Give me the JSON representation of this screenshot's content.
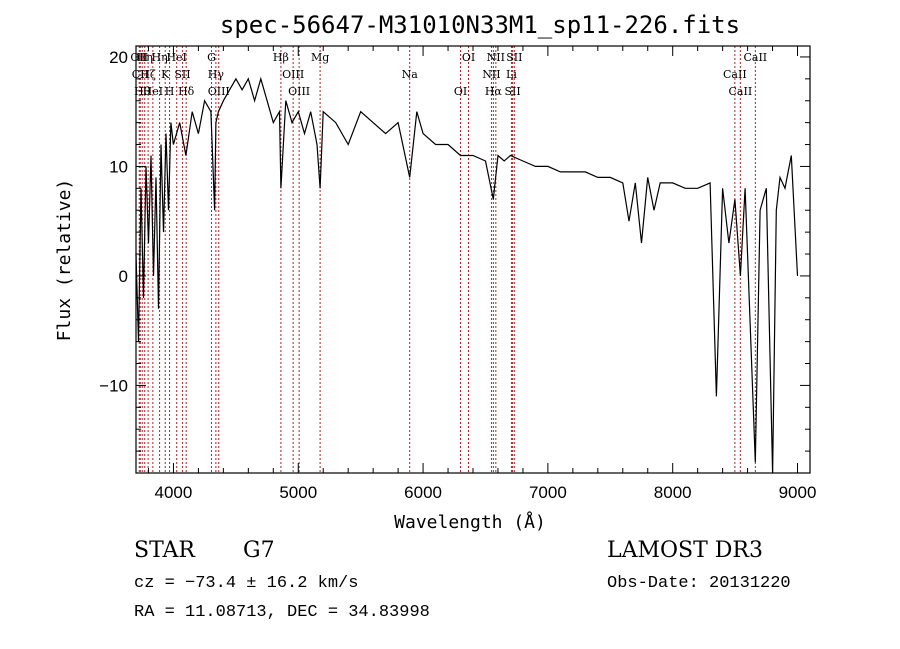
{
  "chart_data": {
    "type": "line",
    "title": "spec-56647-M31010N33M1_sp11-226.fits",
    "xlabel": "Wavelength (Å)",
    "ylabel": "Flux (relative)",
    "xlim": [
      3700,
      9100
    ],
    "ylim": [
      -18,
      21
    ],
    "xticks": [
      4000,
      5000,
      6000,
      7000,
      8000,
      9000
    ],
    "yticks": [
      -10,
      0,
      10,
      20
    ],
    "series": [
      {
        "name": "spectrum",
        "x": [
          3700,
          3720,
          3740,
          3760,
          3780,
          3800,
          3820,
          3840,
          3860,
          3880,
          3900,
          3920,
          3940,
          3960,
          3980,
          4000,
          4050,
          4100,
          4150,
          4200,
          4250,
          4300,
          4330,
          4340,
          4360,
          4400,
          4450,
          4500,
          4550,
          4600,
          4650,
          4700,
          4750,
          4800,
          4850,
          4861,
          4900,
          4950,
          5000,
          5050,
          5100,
          5150,
          5175,
          5200,
          5300,
          5400,
          5500,
          5600,
          5700,
          5800,
          5893,
          5950,
          6000,
          6100,
          6200,
          6300,
          6400,
          6500,
          6563,
          6600,
          6650,
          6700,
          6800,
          6900,
          7000,
          7100,
          7200,
          7300,
          7400,
          7500,
          7600,
          7650,
          7700,
          7750,
          7800,
          7850,
          7900,
          8000,
          8100,
          8200,
          8300,
          8350,
          8400,
          8450,
          8498,
          8542,
          8580,
          8662,
          8700,
          8750,
          8800,
          8830,
          8860,
          8900,
          8950,
          9000
        ],
        "y": [
          2,
          -6,
          8,
          -2,
          10,
          3,
          11,
          0,
          9,
          -3,
          12,
          4,
          13,
          6,
          14,
          12,
          14,
          11,
          15,
          13,
          16,
          15,
          6,
          14,
          15,
          16,
          17,
          18,
          17,
          18,
          16,
          18,
          16,
          14,
          15,
          8,
          16,
          14,
          15,
          13,
          15,
          12,
          8,
          15,
          14,
          12,
          15,
          14,
          13,
          14,
          9,
          15,
          13,
          12,
          12,
          11,
          11,
          10.5,
          7,
          11,
          10.5,
          11,
          10.5,
          10,
          10,
          9.5,
          9.5,
          9.5,
          9,
          9,
          8.5,
          5,
          8.5,
          3,
          9,
          6,
          8.5,
          8.5,
          8,
          8,
          8.5,
          -11,
          8,
          3,
          7,
          0,
          8,
          -17,
          6,
          8,
          -18,
          6,
          9,
          8,
          11,
          0
        ]
      }
    ],
    "lines": [
      {
        "x": 3726,
        "label": "OII"
      },
      {
        "x": 3734,
        "label": "CII"
      },
      {
        "x": 3750,
        "label": "Hθ"
      },
      {
        "x": 3770,
        "label": "Hη"
      },
      {
        "x": 3797,
        "label": "Hζ"
      },
      {
        "x": 3835,
        "label": "HeI"
      },
      {
        "x": 3889,
        "label": "Hη"
      },
      {
        "x": 3934,
        "label": "K"
      },
      {
        "x": 3969,
        "label": "H"
      },
      {
        "x": 4026,
        "label": "HeI"
      },
      {
        "x": 4072,
        "label": "SII"
      },
      {
        "x": 4102,
        "label": "Hδ"
      },
      {
        "x": 4305,
        "label": "G"
      },
      {
        "x": 4340,
        "label": "Hγ"
      },
      {
        "x": 4363,
        "label": "OIII"
      },
      {
        "x": 4861,
        "label": "Hβ"
      },
      {
        "x": 4959,
        "label": "OIII"
      },
      {
        "x": 5007,
        "label": "OIII"
      },
      {
        "x": 5175,
        "label": "Mg"
      },
      {
        "x": 5893,
        "label": "Na"
      },
      {
        "x": 6300,
        "label": "OI"
      },
      {
        "x": 6364,
        "label": "OI"
      },
      {
        "x": 6548,
        "label": "NII"
      },
      {
        "x": 6563,
        "label": "Hα"
      },
      {
        "x": 6583,
        "label": "NII"
      },
      {
        "x": 6708,
        "label": "Li"
      },
      {
        "x": 6717,
        "label": "SII"
      },
      {
        "x": 6731,
        "label": "SII"
      },
      {
        "x": 8498,
        "label": "CaII"
      },
      {
        "x": 8542,
        "label": "CaII"
      },
      {
        "x": 8662,
        "label": "CaII"
      }
    ],
    "line_color": "#b22222"
  },
  "info": {
    "object_type": "STAR",
    "subclass": "G7",
    "survey": "LAMOST DR3",
    "cz": "cz = −73.4 ± 16.2 km/s",
    "obs_date": "Obs-Date: 20131220",
    "coords": "RA =  11.08713, DEC =  34.83998"
  }
}
